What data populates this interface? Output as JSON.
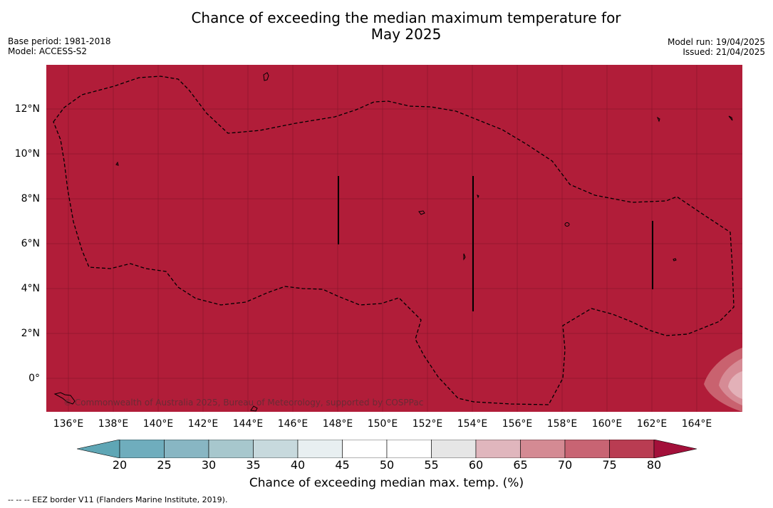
{
  "title": {
    "line1": "Chance of exceeding the median maximum temperature for",
    "line2": "May 2025"
  },
  "meta": {
    "base_period": "Base period: 1981-2018",
    "model": "Model: ACCESS-S2",
    "model_run": "Model run: 19/04/2025",
    "issued": "Issued: 21/04/2025"
  },
  "map": {
    "fill_color": "#b11d39",
    "lat_labels": [
      "12°N",
      "10°N",
      "8°N",
      "6°N",
      "4°N",
      "2°N",
      "0°"
    ],
    "lon_labels": [
      "136°E",
      "138°E",
      "140°E",
      "142°E",
      "144°E",
      "146°E",
      "148°E",
      "150°E",
      "152°E",
      "154°E",
      "156°E",
      "158°E",
      "160°E",
      "162°E",
      "164°E"
    ],
    "copyright": "© Commonwealth of Australia 2025, Bureau of Meteorology, supported by COSPPac"
  },
  "colorbar": {
    "ticks": [
      "20",
      "25",
      "30",
      "35",
      "40",
      "45",
      "50",
      "55",
      "60",
      "65",
      "70",
      "75",
      "80"
    ],
    "colors": [
      "#5fa6b5",
      "#6fadbd",
      "#88b6c3",
      "#a7c7cd",
      "#c7d9dd",
      "#e8eff1",
      "#ffffff",
      "#ffffff",
      "#e6e6e6",
      "#e0b6bd",
      "#d48a93",
      "#c86473",
      "#b93c52",
      "#a3103a"
    ],
    "label": "Chance of exceeding median max. temp. (%)"
  },
  "footer": "--  --  -- EEZ border V11 (Flanders Marine Institute, 2019)."
}
